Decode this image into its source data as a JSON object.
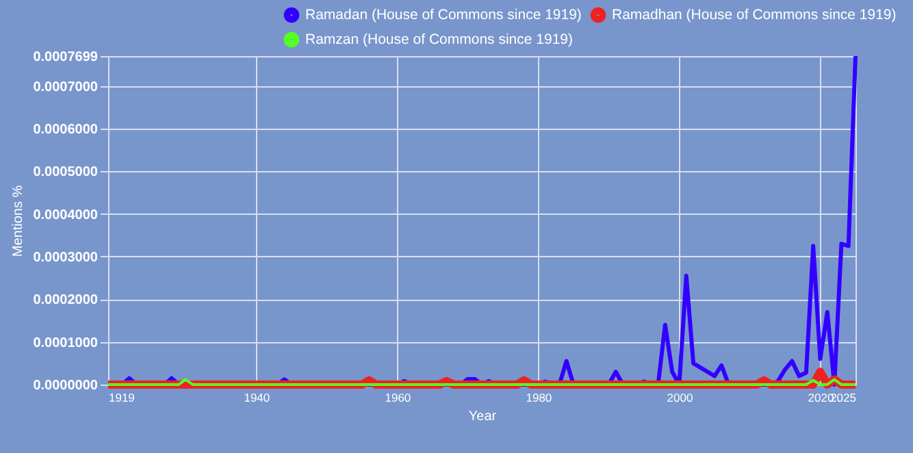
{
  "chart_data": {
    "type": "line",
    "xlabel": "Year",
    "ylabel": "Mentions %",
    "legend": "top",
    "grid": true,
    "line_style": "solid",
    "marker": "none",
    "x": [
      1919,
      1920,
      1921,
      1922,
      1923,
      1924,
      1925,
      1926,
      1927,
      1928,
      1929,
      1930,
      1931,
      1932,
      1933,
      1934,
      1935,
      1936,
      1937,
      1938,
      1939,
      1940,
      1941,
      1942,
      1943,
      1944,
      1945,
      1946,
      1947,
      1948,
      1949,
      1950,
      1951,
      1952,
      1953,
      1954,
      1955,
      1956,
      1957,
      1958,
      1959,
      1960,
      1961,
      1962,
      1963,
      1964,
      1965,
      1966,
      1967,
      1968,
      1969,
      1970,
      1971,
      1972,
      1973,
      1974,
      1975,
      1976,
      1977,
      1978,
      1979,
      1980,
      1981,
      1982,
      1983,
      1984,
      1985,
      1986,
      1987,
      1988,
      1989,
      1990,
      1991,
      1992,
      1993,
      1994,
      1995,
      1996,
      1997,
      1998,
      1999,
      2000,
      2001,
      2002,
      2003,
      2004,
      2005,
      2006,
      2007,
      2008,
      2009,
      2010,
      2011,
      2012,
      2013,
      2014,
      2015,
      2016,
      2017,
      2018,
      2019,
      2020,
      2021,
      2022,
      2023,
      2024,
      2025
    ],
    "series": [
      {
        "name": "Ramadan (House of Commons since 1919)",
        "color": "#3300ff",
        "values": [
          0,
          0,
          0,
          1.5e-05,
          0,
          0,
          0,
          0,
          0,
          1.5e-05,
          0,
          0,
          0,
          0,
          0,
          0,
          0,
          0,
          0,
          0,
          0,
          0,
          0,
          0,
          0,
          1.2e-05,
          0,
          0,
          0,
          0,
          0,
          0,
          0,
          0,
          0,
          0,
          0,
          0,
          0,
          0,
          0,
          0,
          8e-06,
          0,
          0,
          0,
          0,
          0,
          0,
          0,
          0,
          1.3e-05,
          1.3e-05,
          0,
          8e-06,
          0,
          0,
          0,
          0,
          0,
          0,
          0,
          7e-06,
          0,
          0,
          5.5e-05,
          0,
          0,
          0,
          0,
          0,
          0,
          3e-05,
          0,
          0,
          0,
          7e-06,
          0,
          0,
          0.00014,
          3e-05,
          0,
          0.000255,
          5e-05,
          4e-05,
          3e-05,
          2e-05,
          4.5e-05,
          0,
          0,
          0,
          0,
          0,
          0,
          0,
          8e-06,
          3.5e-05,
          5.5e-05,
          2e-05,
          2.8e-05,
          0.000325,
          6e-05,
          0.00017,
          0,
          0.00033,
          0.000325,
          0.0007699
        ]
      },
      {
        "name": "Ramadhan (House of Commons since 1919)",
        "color": "#ee2222",
        "values": [
          0,
          0,
          0,
          0,
          0,
          0,
          0,
          0,
          0,
          0,
          0,
          0,
          0,
          0,
          0,
          0,
          0,
          0,
          0,
          0,
          0,
          0,
          0,
          0,
          0,
          0,
          0,
          0,
          0,
          0,
          0,
          0,
          0,
          0,
          0,
          0,
          0,
          1e-05,
          0,
          0,
          0,
          0,
          0,
          0,
          0,
          0,
          0,
          0,
          8e-06,
          0,
          0,
          0,
          0,
          0,
          0,
          0,
          0,
          0,
          0,
          1e-05,
          0,
          0,
          0,
          0,
          0,
          0,
          0,
          0,
          0,
          0,
          0,
          0,
          0,
          0,
          0,
          0,
          0,
          0,
          0,
          0,
          0,
          0,
          0,
          0,
          0,
          0,
          0,
          0,
          0,
          0,
          0,
          0,
          0,
          1e-05,
          0,
          0,
          0,
          0,
          0,
          0,
          0,
          3e-05,
          0,
          1.2e-05,
          0,
          0,
          0
        ]
      },
      {
        "name": "Ramzan (House of Commons since 1919)",
        "color": "#55ff22",
        "values": [
          0,
          0,
          0,
          0,
          0,
          0,
          0,
          0,
          0,
          0,
          0,
          1.2e-05,
          0,
          0,
          0,
          0,
          0,
          0,
          0,
          0,
          0,
          0,
          0,
          0,
          0,
          0,
          0,
          0,
          0,
          0,
          0,
          0,
          0,
          0,
          0,
          0,
          0,
          0,
          0,
          0,
          0,
          0,
          0,
          0,
          0,
          0,
          0,
          0,
          0,
          0,
          0,
          0,
          0,
          0,
          0,
          0,
          0,
          0,
          0,
          0,
          0,
          0,
          0,
          0,
          0,
          0,
          0,
          0,
          0,
          0,
          0,
          0,
          0,
          0,
          0,
          0,
          0,
          0,
          0,
          0,
          0,
          0,
          0,
          0,
          0,
          0,
          0,
          0,
          0,
          0,
          0,
          0,
          0,
          0,
          0,
          0,
          0,
          0,
          0,
          0,
          1e-05,
          0,
          0,
          1.2e-05,
          0,
          0,
          0
        ]
      }
    ],
    "xlim": [
      1919,
      2025
    ],
    "xticks": [
      1919,
      1940,
      1960,
      1980,
      2000,
      2020,
      2025
    ],
    "ylim": [
      0,
      0.0007699
    ],
    "yticks": [
      {
        "value": 0,
        "label": "0.0000000"
      },
      {
        "value": 0.0001,
        "label": "0.0001000"
      },
      {
        "value": 0.0002,
        "label": "0.0002000"
      },
      {
        "value": 0.0003,
        "label": "0.0003000"
      },
      {
        "value": 0.0004,
        "label": "0.0004000"
      },
      {
        "value": 0.0005,
        "label": "0.0005000"
      },
      {
        "value": 0.0006,
        "label": "0.0006000"
      },
      {
        "value": 0.0007,
        "label": "0.0007000"
      },
      {
        "value": 0.0007699,
        "label": "0.0007699"
      }
    ]
  }
}
